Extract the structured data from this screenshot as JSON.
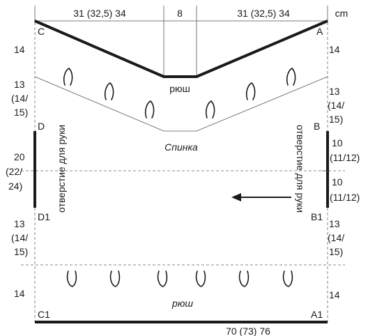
{
  "top_dims": {
    "left": "31 (32,5) 34",
    "center": "8",
    "right": "31 (32,5) 34",
    "unit": "cm"
  },
  "points": {
    "C": "C",
    "A": "A",
    "D": "D",
    "B": "B",
    "D1": "D1",
    "B1": "B1",
    "C1": "C1",
    "A1": "A1"
  },
  "left_side": {
    "top": "14",
    "upper": [
      "13",
      "(14/",
      "15)"
    ],
    "armhole": [
      "20",
      "(22/",
      "24)"
    ],
    "lower": [
      "13",
      "(14/",
      "15)"
    ],
    "bottom": "14"
  },
  "right_side": {
    "top": "14",
    "upper": [
      "13",
      "(14/",
      "15)"
    ],
    "arm_top": [
      "10",
      "(11/12)"
    ],
    "arm_bottom": [
      "10",
      "(11/12)"
    ],
    "lower": [
      "13",
      "(14/",
      "15)"
    ],
    "bottom": "14"
  },
  "labels": {
    "ruffle_top": "рюш",
    "ruffle_bottom": "рюш",
    "piece_title": "Спинка",
    "armhole_left": "отверстие для руки",
    "armhole_right": "отверстие для руки"
  },
  "bottom_dim": "70 (73) 76"
}
